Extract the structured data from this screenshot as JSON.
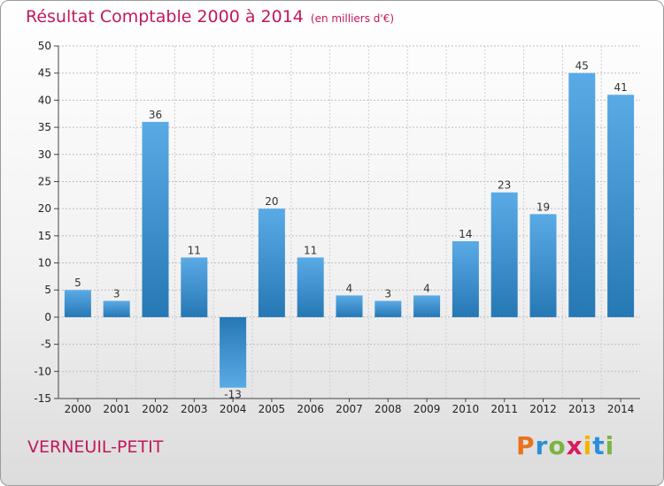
{
  "header": {
    "title": "Résultat Comptable 2000 à 2014",
    "subtitle": "(en milliers d'€)"
  },
  "footer": {
    "commune": "VERNEUIL-PETIT",
    "logo_letters": [
      "P",
      "r",
      "o",
      "x",
      "i",
      "t",
      "i"
    ],
    "logo_colors": [
      "#e8731b",
      "#2a8fd8",
      "#7cb342",
      "#d81b60",
      "#f4b400",
      "#2a8fd8",
      "#7cb342"
    ]
  },
  "chart_data": {
    "type": "bar",
    "title": "Résultat Comptable 2000 à 2014",
    "subtitle": "(en milliers d'€)",
    "categories": [
      "2000",
      "2001",
      "2002",
      "2003",
      "2004",
      "2005",
      "2006",
      "2007",
      "2008",
      "2009",
      "2010",
      "2011",
      "2012",
      "2013",
      "2014"
    ],
    "values": [
      5,
      3,
      36,
      11,
      -13,
      20,
      11,
      4,
      3,
      4,
      14,
      23,
      19,
      45,
      41
    ],
    "ylim": [
      -15,
      50
    ],
    "yticks": [
      -15,
      -10,
      -5,
      0,
      5,
      10,
      15,
      20,
      25,
      30,
      35,
      40,
      45,
      50
    ],
    "ytick_labels": [
      "-15",
      "-10",
      "-5",
      "0",
      "5",
      "10",
      "15",
      "20",
      "25",
      "30",
      "35",
      "40",
      "45",
      "50"
    ],
    "grid": true,
    "bar_color_light": "#5aaae6",
    "bar_color_dark": "#2678b4"
  }
}
